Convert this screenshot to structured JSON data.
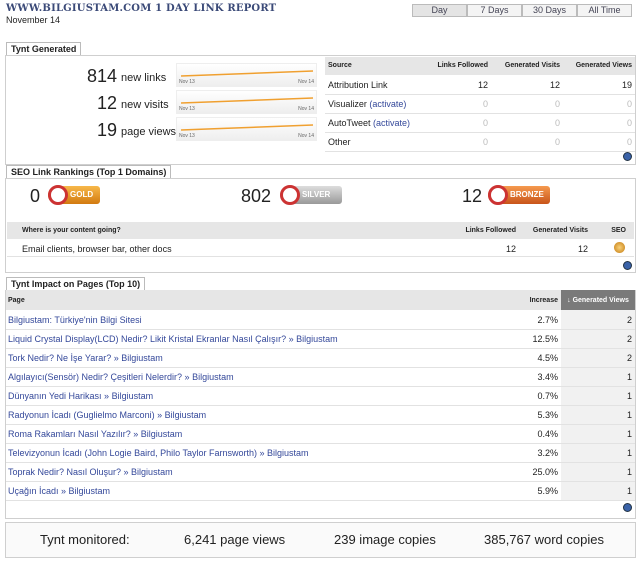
{
  "header": {
    "title": "WWW.BILGIUSTAM.COM 1 DAY LINK REPORT",
    "date": "November 14",
    "tabs": [
      "Day",
      "7 Days",
      "30 Days",
      "All Time"
    ]
  },
  "generated": {
    "title": "Tynt Generated",
    "stats": [
      {
        "value": "814",
        "label": "new links"
      },
      {
        "value": "12",
        "label": "new visits"
      },
      {
        "value": "19",
        "label": "page views"
      }
    ],
    "spark_labels": [
      "Nov 13",
      "Nov 14"
    ],
    "table": {
      "columns": [
        "Source",
        "Links Followed",
        "Generated Visits",
        "Generated Views"
      ],
      "rows": [
        {
          "source": "Attribution Link",
          "values": [
            12,
            12,
            19
          ]
        },
        {
          "source": "Visualizer",
          "action": "(activate)",
          "values": [
            0,
            0,
            0
          ]
        },
        {
          "source": "AutoTweet",
          "action": "(activate)",
          "values": [
            0,
            0,
            0
          ]
        },
        {
          "source": "Other",
          "values": [
            0,
            0,
            0
          ]
        }
      ]
    }
  },
  "seo": {
    "title": "SEO Link Rankings (Top 1 Domains)",
    "medals": [
      {
        "value": 0,
        "label": "GOLD"
      },
      {
        "value": 802,
        "label": "SILVER"
      },
      {
        "value": 12,
        "label": "BRONZE"
      }
    ],
    "table": {
      "columns": [
        "Where is your content going?",
        "Links Followed",
        "Generated Visits",
        "SEO"
      ],
      "rows": [
        {
          "source": "Email clients, browser bar, other docs",
          "values": [
            12,
            12
          ]
        }
      ]
    }
  },
  "impact": {
    "title": "Tynt Impact on Pages (Top 10)",
    "columns": [
      "Page",
      "Increase",
      "↓ Generated Views"
    ],
    "rows": [
      {
        "page": "Bilgiustam: Türkiye'nin Bilgi Sitesi",
        "increase": "2.7%",
        "views": 2
      },
      {
        "page": "Liquid Crystal Display(LCD) Nedir? Likit Kristal Ekranlar Nasıl Çalışır? » Bilgiustam",
        "increase": "12.5%",
        "views": 2
      },
      {
        "page": "Tork Nedir? Ne İşe Yarar? » Bilgiustam",
        "increase": "4.5%",
        "views": 2
      },
      {
        "page": "Algılayıcı(Sensör) Nedir? Çeşitleri Nelerdir? » Bilgiustam",
        "increase": "3.4%",
        "views": 1
      },
      {
        "page": "Dünyanın Yedi Harikası » Bilgiustam",
        "increase": "0.7%",
        "views": 1
      },
      {
        "page": "Radyonun İcadı (Guglielmo Marconi) » Bilgiustam",
        "increase": "5.3%",
        "views": 1
      },
      {
        "page": "Roma Rakamları Nasıl Yazılır? » Bilgiustam",
        "increase": "0.4%",
        "views": 1
      },
      {
        "page": "Televizyonun İcadı (John Logie Baird, Philo Taylor Farnsworth) » Bilgiustam",
        "increase": "3.2%",
        "views": 1
      },
      {
        "page": "Toprak Nedir? Nasıl Oluşur? » Bilgiustam",
        "increase": "25.0%",
        "views": 1
      },
      {
        "page": "Uçağın İcadı » Bilgiustam",
        "increase": "5.9%",
        "views": 1
      }
    ]
  },
  "monitored": {
    "label": "Tynt monitored:",
    "items": [
      "6,241 page views",
      "239 image copies",
      "385,767 word copies"
    ]
  }
}
